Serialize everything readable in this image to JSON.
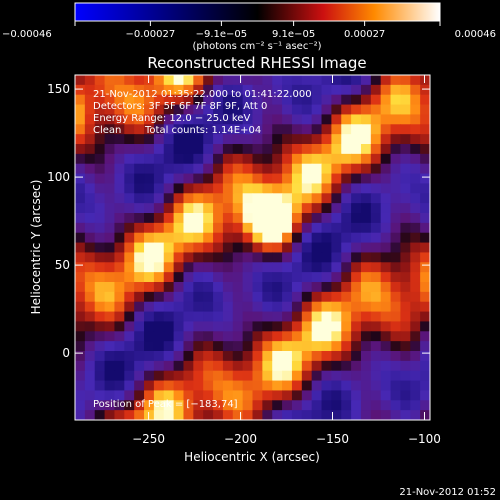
{
  "chart_data": {
    "type": "heatmap",
    "title": "Reconstructed RHESSI Image",
    "xlabel": "Heliocentric X (arcsec)",
    "ylabel": "Heliocentric Y (arcsec)",
    "xlim": [
      -290,
      -97
    ],
    "ylim": [
      -38,
      158
    ],
    "xticks": [
      -250,
      -200,
      -150,
      -100
    ],
    "xtick_labels": [
      "−250",
      "−200",
      "−150",
      "−100"
    ],
    "yticks": [
      0,
      50,
      100,
      150
    ],
    "ytick_labels": [
      "0",
      "50",
      "100",
      "150"
    ],
    "colorbar": {
      "range": [
        -0.00046,
        0.00046
      ],
      "tick_values": [
        -0.00046,
        -0.00027,
        -9.1e-05,
        9.1e-05,
        0.00027,
        0.00046
      ],
      "tick_labels": [
        "−0.00046",
        "−0.00027",
        "−9.1e−05",
        "9.1e−05",
        "0.00027",
        "0.00046"
      ],
      "unit": "(photons cm⁻² s⁻¹ asec⁻²)"
    },
    "annotations": [
      "21-Nov-2012 01:35:22.000 to 01:41:22.000",
      "Detectors: 3F 5F 6F 7F 8F 9F, Att 0",
      "Energy Range: 12.0 − 25.0 keV",
      "Clean",
      "Total counts: 1.14E+04"
    ],
    "peak_label": "Position of Peak = [−183,74]",
    "peak": [
      -183,
      74
    ],
    "footer_timestamp": "21-Nov-2012 01:52"
  }
}
